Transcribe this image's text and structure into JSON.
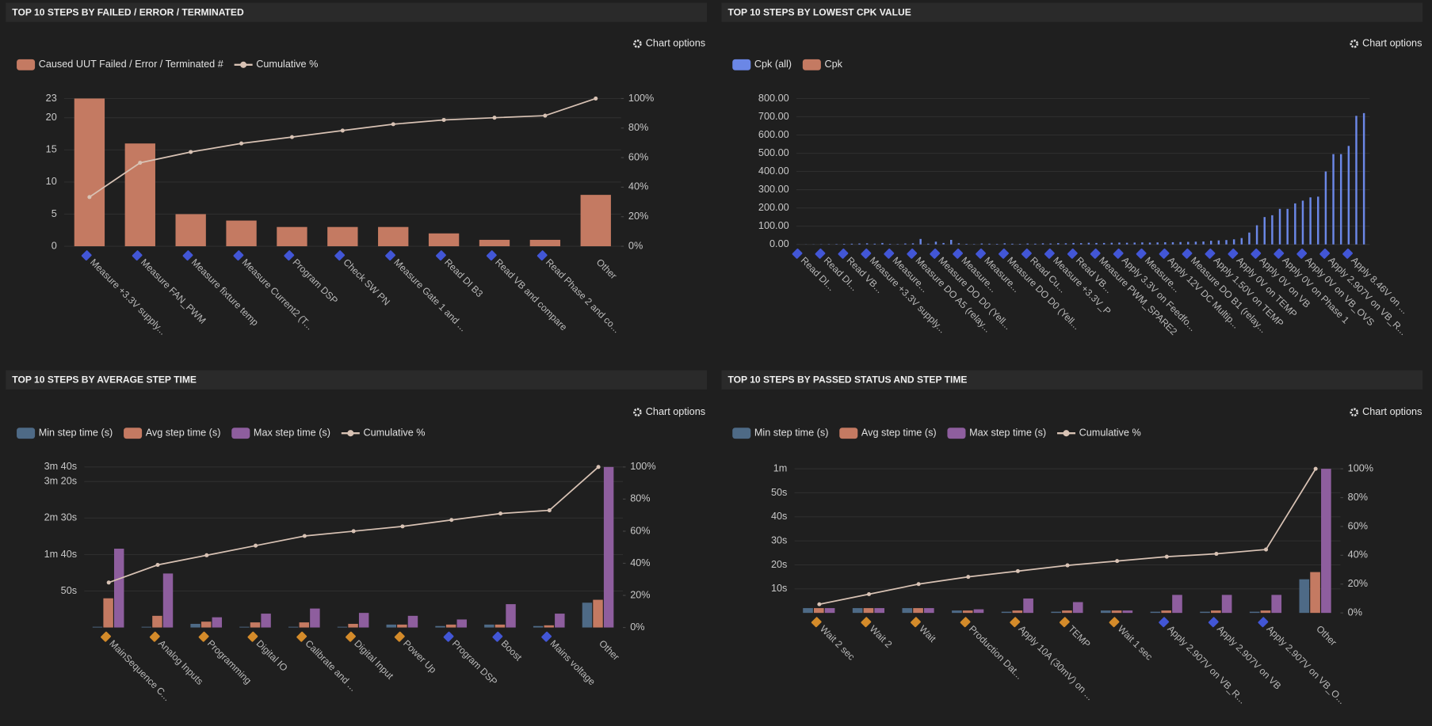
{
  "chart_options": "Chart options",
  "chart_data": [
    {
      "type": "bar",
      "title": "TOP 10 STEPS BY FAILED / ERROR / TERMINATED",
      "categories": [
        "Measure +3.3V supply...",
        "Measure FAN_PWM",
        "Measure fixture temp",
        "Measure Current2 (T...",
        "Program DSP",
        "Check SW PN",
        "Measure Gate 1 and ...",
        "Read DI B3",
        "Read VB and compare",
        "Read Phase 2 and co...",
        "Other"
      ],
      "series": [
        {
          "name": "Caused UUT Failed / Error / Terminated #",
          "color": "#c47a62",
          "values": [
            23,
            16,
            5,
            4,
            3,
            3,
            3,
            2,
            1,
            1,
            8
          ]
        },
        {
          "name": "Cumulative %",
          "color": "#d8c2b4",
          "type": "line",
          "axis": "y2",
          "values": [
            33.3,
            56.5,
            63.8,
            69.6,
            73.9,
            78.3,
            82.6,
            85.5,
            87.0,
            88.4,
            100
          ]
        }
      ],
      "ylim": [
        0,
        23
      ],
      "yticks": [
        0,
        5,
        10,
        15,
        20,
        23
      ],
      "y2lim": [
        0,
        100
      ],
      "y2ticks": [
        {
          "value": 0,
          "label": "0%"
        },
        {
          "value": 20,
          "label": "20%"
        },
        {
          "value": 40,
          "label": "40%"
        },
        {
          "value": 60,
          "label": "60%"
        },
        {
          "value": 80,
          "label": "80%"
        },
        {
          "value": 100,
          "label": "100%"
        }
      ],
      "grid": true,
      "legend": "top-left"
    },
    {
      "type": "bar",
      "title": "TOP 10 STEPS BY LOWEST CPK VALUE",
      "categories": [
        "Read DI...",
        null,
        null,
        "Read DI...",
        null,
        null,
        "Read VB...",
        null,
        null,
        "Measure +3.3V supply...",
        null,
        null,
        "Measure...",
        null,
        null,
        "Measure DO A5 (relay...",
        null,
        null,
        "Measure DO D0 (Yell...",
        null,
        null,
        "Measure...",
        null,
        null,
        "Measure...",
        null,
        null,
        "Measure DO D0 (Yell...",
        null,
        null,
        "Read Cu...",
        null,
        null,
        "Measure +3.3V_P",
        null,
        null,
        "Read VB...",
        null,
        null,
        "Measure PWM_SPARE2",
        null,
        null,
        "Apply 3.3V on Feedfo...",
        null,
        null,
        "Measure...",
        null,
        null,
        "Apply 12V DC Multip...",
        null,
        null,
        "Measure DO B1 (relay...",
        null,
        null,
        "Apply 1.50V on TEMP",
        null,
        null,
        "Apply 0V on TEMP",
        null,
        null,
        "Apply 0V on VB",
        null,
        null,
        "Apply 0V on Phase 1",
        null,
        null,
        "Apply 0V on VB_OVS",
        null,
        null,
        "Apply 2.907V on VB_R...",
        null,
        null,
        "Apply 8.46V on ...",
        null,
        null
      ],
      "series": [
        {
          "name": "Cpk (all)",
          "color": "#6b87e6",
          "values": [
            0.2,
            0.5,
            0.8,
            1,
            1.5,
            2,
            3,
            4,
            5,
            6,
            4,
            8,
            3,
            2,
            5,
            6,
            30,
            4,
            15,
            8,
            25,
            6,
            3,
            2,
            5,
            4,
            3,
            6,
            4,
            3,
            5,
            4,
            6,
            5,
            7,
            6,
            8,
            7,
            9,
            8,
            8,
            9,
            10,
            9,
            10,
            11,
            10,
            11,
            12,
            12,
            13,
            14,
            15,
            16,
            20,
            22,
            24,
            28,
            35,
            65,
            105,
            150,
            160,
            195,
            195,
            225,
            240,
            258,
            262,
            400,
            495,
            495,
            540,
            705,
            720
          ]
        },
        {
          "name": "Cpk",
          "color": "#c47a62",
          "values": [
            null,
            null,
            null,
            null,
            null,
            null,
            null,
            null,
            null,
            null,
            null,
            null,
            null,
            null,
            null,
            null,
            null,
            null,
            null,
            null,
            null,
            null,
            null,
            null,
            null,
            null,
            null,
            null,
            null,
            null,
            null,
            null,
            null,
            null,
            null,
            null,
            null,
            null,
            null,
            null,
            null,
            null,
            null,
            null,
            null,
            null,
            null,
            null,
            null,
            null,
            null,
            null,
            null,
            null,
            null,
            null,
            null,
            null,
            null,
            null,
            null,
            null,
            null,
            null,
            null,
            null,
            null,
            null,
            null,
            null,
            null,
            null,
            null,
            null,
            null
          ]
        }
      ],
      "ylim": [
        0,
        800
      ],
      "yticks": [
        {
          "value": 0,
          "label": "0.00"
        },
        {
          "value": 100,
          "label": "100.00"
        },
        {
          "value": 200,
          "label": "200.00"
        },
        {
          "value": 300,
          "label": "300.00"
        },
        {
          "value": 400,
          "label": "400.00"
        },
        {
          "value": 500,
          "label": "500.00"
        },
        {
          "value": 600,
          "label": "600.00"
        },
        {
          "value": 700,
          "label": "700.00"
        },
        {
          "value": 800,
          "label": "800.00"
        }
      ],
      "grid": true,
      "legend": "top-left"
    },
    {
      "type": "bar",
      "title": "TOP 10 STEPS BY AVERAGE STEP TIME",
      "categories": [
        "MainSequence C...",
        "Analog Inputs",
        "Programming",
        "Digital IO",
        "Calibrate and ...",
        "Digital Input",
        "Power Up",
        "Program DSP",
        "Boost",
        "Mains voltage",
        "Other"
      ],
      "series": [
        {
          "name": "Min step time (s)",
          "color": "#4e6a86",
          "values": [
            1,
            1,
            5,
            1,
            1,
            1,
            4,
            2,
            4,
            2,
            34
          ]
        },
        {
          "name": "Avg step time (s)",
          "color": "#c47a62",
          "values": [
            40,
            16,
            8,
            7,
            7,
            5,
            4,
            4,
            4,
            3,
            38
          ]
        },
        {
          "name": "Max step time (s)",
          "color": "#8e5e9e",
          "values": [
            108,
            74,
            14,
            19,
            26,
            20,
            16,
            11,
            32,
            19,
            220
          ]
        },
        {
          "name": "Cumulative %",
          "color": "#d8c2b4",
          "type": "line",
          "axis": "y2",
          "values": [
            28,
            39,
            45,
            51,
            57,
            60,
            63,
            67,
            71,
            73,
            100
          ]
        }
      ],
      "ylim": [
        0,
        220
      ],
      "yticks": [
        {
          "value": 50,
          "label": "50s"
        },
        {
          "value": 100,
          "label": "1m 40s"
        },
        {
          "value": 150,
          "label": "2m 30s"
        },
        {
          "value": 200,
          "label": "3m 20s"
        },
        {
          "value": 220,
          "label": "3m 40s"
        }
      ],
      "y2lim": [
        0,
        100
      ],
      "y2ticks": [
        {
          "value": 0,
          "label": "0%"
        },
        {
          "value": 20,
          "label": "20%"
        },
        {
          "value": 40,
          "label": "40%"
        },
        {
          "value": 60,
          "label": "60%"
        },
        {
          "value": 80,
          "label": "80%"
        },
        {
          "value": 100,
          "label": "100%"
        }
      ],
      "grid": true,
      "legend": "top-left"
    },
    {
      "type": "bar",
      "title": "TOP 10 STEPS BY PASSED STATUS AND STEP TIME",
      "categories": [
        "Wait 2 sec",
        "Wait 2",
        "Wait",
        "Production Dat...",
        "Apply 10A (30mV) on ...",
        "TEMP",
        "Wait 1 sec",
        "Apply 2.907V on VB_R...",
        "Apply 2.907V on VB",
        "Apply 2.907V on VB_O...",
        "Other"
      ],
      "series": [
        {
          "name": "Min step time (s)",
          "color": "#4e6a86",
          "values": [
            2,
            2,
            2,
            1,
            0.5,
            0.5,
            1,
            0.5,
            0.5,
            0.5,
            14
          ]
        },
        {
          "name": "Avg step time (s)",
          "color": "#c47a62",
          "values": [
            2,
            2,
            2,
            1,
            1,
            1,
            1,
            1,
            1,
            1,
            17
          ]
        },
        {
          "name": "Max step time (s)",
          "color": "#8e5e9e",
          "values": [
            2,
            2,
            2,
            1.5,
            6,
            4.5,
            1,
            7.5,
            7.5,
            7.5,
            60
          ]
        },
        {
          "name": "Cumulative %",
          "color": "#d8c2b4",
          "type": "line",
          "axis": "y2",
          "values": [
            6,
            13,
            20,
            25,
            29,
            33,
            36,
            39,
            41,
            44,
            100
          ]
        }
      ],
      "ylim": [
        0,
        60
      ],
      "yticks": [
        {
          "value": 10,
          "label": "10s"
        },
        {
          "value": 20,
          "label": "20s"
        },
        {
          "value": 30,
          "label": "30s"
        },
        {
          "value": 40,
          "label": "40s"
        },
        {
          "value": 50,
          "label": "50s"
        },
        {
          "value": 60,
          "label": "1m"
        }
      ],
      "y2lim": [
        0,
        100
      ],
      "y2ticks": [
        {
          "value": 0,
          "label": "0%"
        },
        {
          "value": 20,
          "label": "20%"
        },
        {
          "value": 40,
          "label": "40%"
        },
        {
          "value": 60,
          "label": "60%"
        },
        {
          "value": 80,
          "label": "80%"
        },
        {
          "value": 100,
          "label": "100%"
        }
      ],
      "grid": true,
      "legend": "top-left"
    }
  ]
}
